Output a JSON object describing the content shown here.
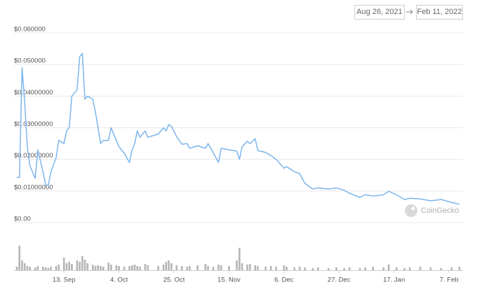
{
  "date_range": {
    "from": "Aug 26, 2021",
    "to": "Feb 11, 2022"
  },
  "chart_data": {
    "type": "line",
    "x": [
      "2021-08-26",
      "2021-08-27",
      "2021-08-28",
      "2021-08-29",
      "2021-08-30",
      "2021-08-31",
      "2021-09-02",
      "2021-09-03",
      "2021-09-05",
      "2021-09-06",
      "2021-09-07",
      "2021-09-08",
      "2021-09-10",
      "2021-09-11",
      "2021-09-13",
      "2021-09-14",
      "2021-09-15",
      "2021-09-16",
      "2021-09-18",
      "2021-09-19",
      "2021-09-20",
      "2021-09-21",
      "2021-09-22",
      "2021-09-24",
      "2021-09-25",
      "2021-09-26",
      "2021-09-27",
      "2021-09-28",
      "2021-09-30",
      "2021-10-01",
      "2021-10-03",
      "2021-10-04",
      "2021-10-06",
      "2021-10-08",
      "2021-10-09",
      "2021-10-10",
      "2021-10-11",
      "2021-10-12",
      "2021-10-14",
      "2021-10-15",
      "2021-10-19",
      "2021-10-21",
      "2021-10-22",
      "2021-10-23",
      "2021-10-24",
      "2021-10-26",
      "2021-10-28",
      "2021-10-30",
      "2021-10-31",
      "2021-11-03",
      "2021-11-06",
      "2021-11-07",
      "2021-11-09",
      "2021-11-11",
      "2021-11-12",
      "2021-11-15",
      "2021-11-18",
      "2021-11-19",
      "2021-11-20",
      "2021-11-22",
      "2021-11-23",
      "2021-11-25",
      "2021-11-26",
      "2021-11-29",
      "2021-12-01",
      "2021-12-03",
      "2021-12-06",
      "2021-12-07",
      "2021-12-10",
      "2021-12-12",
      "2021-12-14",
      "2021-12-17",
      "2021-12-19",
      "2021-12-23",
      "2021-12-26",
      "2021-12-29",
      "2021-12-31",
      "2022-01-04",
      "2022-01-06",
      "2022-01-09",
      "2022-01-13",
      "2022-01-15",
      "2022-01-18",
      "2022-01-21",
      "2022-01-23",
      "2022-01-27",
      "2022-01-31",
      "2022-02-04",
      "2022-02-08",
      "2022-02-11"
    ],
    "xlim": [
      "2021-08-26",
      "2022-02-11"
    ],
    "xticks": [
      {
        "value": "2021-09-13",
        "label": "13. Sep"
      },
      {
        "value": "2021-10-04",
        "label": "4. Oct"
      },
      {
        "value": "2021-10-25",
        "label": "25. Oct"
      },
      {
        "value": "2021-11-15",
        "label": "15. Nov"
      },
      {
        "value": "2021-12-06",
        "label": "6. Dec"
      },
      {
        "value": "2021-12-27",
        "label": "27. Dec"
      },
      {
        "value": "2022-01-17",
        "label": "17. Jan"
      },
      {
        "value": "2022-02-07",
        "label": "7. Feb"
      }
    ],
    "ylim": [
      0,
      0.06
    ],
    "yticks": [
      {
        "value": 0.06,
        "label": "$0.060000"
      },
      {
        "value": 0.05,
        "label": "$0.050000"
      },
      {
        "value": 0.04,
        "label": "$0.04000000"
      },
      {
        "value": 0.03,
        "label": "$0.03000000"
      },
      {
        "value": 0.02,
        "label": "$0.02000000"
      },
      {
        "value": 0.01,
        "label": "$0.01000000"
      },
      {
        "value": 0,
        "label": "$0.00"
      }
    ],
    "grid": true,
    "series": [
      {
        "color": "#7cb5ec",
        "values": [
          0.0143,
          0.0143,
          0.049,
          0.038,
          0.024,
          0.018,
          0.014,
          0.023,
          0.016,
          0.012,
          0.0117,
          0.016,
          0.0205,
          0.026,
          0.025,
          0.029,
          0.03,
          0.04,
          0.042,
          0.0525,
          0.0535,
          0.039,
          0.04,
          0.039,
          0.035,
          0.03,
          0.025,
          0.026,
          0.026,
          0.03,
          0.026,
          0.024,
          0.022,
          0.019,
          0.023,
          0.025,
          0.029,
          0.027,
          0.029,
          0.027,
          0.028,
          0.03,
          0.029,
          0.031,
          0.0305,
          0.0272,
          0.0248,
          0.025,
          0.0235,
          0.0243,
          0.0235,
          0.025,
          0.0221,
          0.019,
          0.0235,
          0.023,
          0.0226,
          0.02,
          0.024,
          0.0257,
          0.025,
          0.0265,
          0.0228,
          0.0222,
          0.0212,
          0.02,
          0.0172,
          0.0177,
          0.0161,
          0.0155,
          0.0124,
          0.0106,
          0.011,
          0.0106,
          0.011,
          0.0102,
          0.0093,
          0.008,
          0.0088,
          0.0084,
          0.0088,
          0.0099,
          0.0088,
          0.0073,
          0.0077,
          0.0075,
          0.0069,
          0.0073,
          0.0064,
          0.0058
        ]
      }
    ],
    "volume": {
      "color": "#b5b5b5",
      "ylim": [
        0,
        40
      ],
      "values": [
        5,
        35,
        14,
        10,
        6,
        5,
        4,
        6,
        5,
        4,
        3,
        5,
        6,
        8,
        18,
        10,
        12,
        9,
        14,
        12,
        20,
        15,
        10,
        8,
        6,
        7,
        6,
        5,
        11,
        8,
        7,
        6,
        5,
        6,
        7,
        8,
        6,
        5,
        9,
        7,
        6,
        8,
        12,
        14,
        10,
        7,
        6,
        5,
        6,
        7,
        9,
        6,
        5,
        8,
        7,
        6,
        14,
        32,
        10,
        8,
        9,
        7,
        6,
        5,
        6,
        5,
        7,
        5,
        4,
        5,
        4,
        3,
        4,
        3,
        4,
        3,
        4,
        3,
        4,
        5,
        4,
        8,
        4,
        3,
        4,
        5,
        4,
        3,
        4,
        5
      ]
    },
    "watermark": "CoinGecko"
  }
}
